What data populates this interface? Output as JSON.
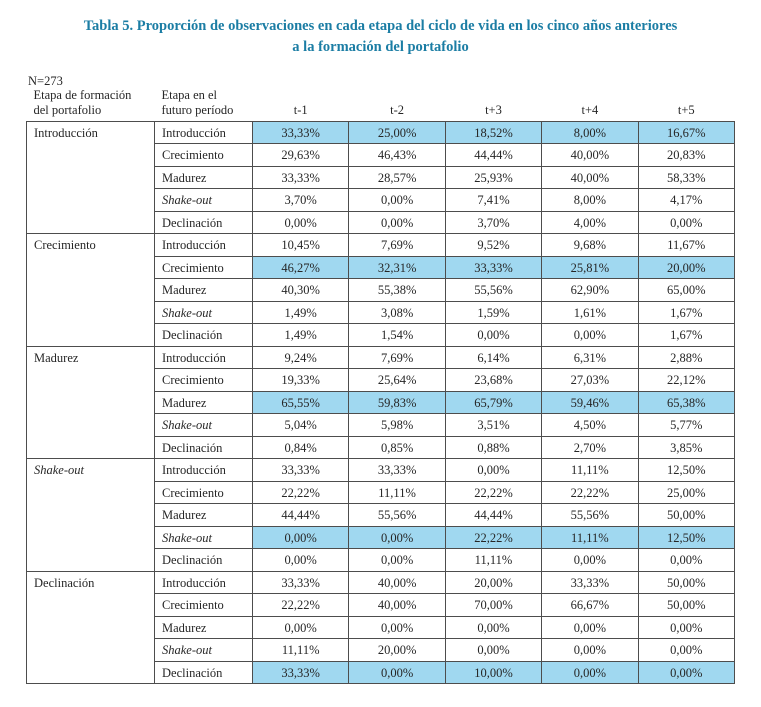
{
  "title": "Tabla 5. Proporción de observaciones en cada etapa del ciclo de vida en los cinco años anteriores\na la formación del portafolio",
  "n_label": "N=273",
  "colors": {
    "title_teal": "#1b7da4",
    "highlight_blue": "#a0d8f0",
    "border_gray": "#4d4d4d"
  },
  "table": {
    "col1_header": "Etapa de formación\ndel portafolio",
    "col2_header": "Etapa en el\nfuturo período",
    "period_headers": [
      "t-1",
      "t-2",
      "t+3",
      "t+4",
      "t+5"
    ],
    "groups": [
      {
        "label": "Introducción",
        "italic": false,
        "rows": [
          {
            "label": "Introducción",
            "italic": false,
            "highlight": true,
            "values": [
              "33,33%",
              "25,00%",
              "18,52%",
              "8,00%",
              "16,67%"
            ]
          },
          {
            "label": "Crecimiento",
            "italic": false,
            "highlight": false,
            "values": [
              "29,63%",
              "46,43%",
              "44,44%",
              "40,00%",
              "20,83%"
            ]
          },
          {
            "label": "Madurez",
            "italic": false,
            "highlight": false,
            "values": [
              "33,33%",
              "28,57%",
              "25,93%",
              "40,00%",
              "58,33%"
            ]
          },
          {
            "label": "Shake-out",
            "italic": true,
            "highlight": false,
            "values": [
              "3,70%",
              "0,00%",
              "7,41%",
              "8,00%",
              "4,17%"
            ]
          },
          {
            "label": "Declinación",
            "italic": false,
            "highlight": false,
            "values": [
              "0,00%",
              "0,00%",
              "3,70%",
              "4,00%",
              "0,00%"
            ]
          }
        ]
      },
      {
        "label": "Crecimiento",
        "italic": false,
        "rows": [
          {
            "label": "Introducción",
            "italic": false,
            "highlight": false,
            "values": [
              "10,45%",
              "7,69%",
              "9,52%",
              "9,68%",
              "11,67%"
            ]
          },
          {
            "label": "Crecimiento",
            "italic": false,
            "highlight": true,
            "values": [
              "46,27%",
              "32,31%",
              "33,33%",
              "25,81%",
              "20,00%"
            ]
          },
          {
            "label": "Madurez",
            "italic": false,
            "highlight": false,
            "values": [
              "40,30%",
              "55,38%",
              "55,56%",
              "62,90%",
              "65,00%"
            ]
          },
          {
            "label": "Shake-out",
            "italic": true,
            "highlight": false,
            "values": [
              "1,49%",
              "3,08%",
              "1,59%",
              "1,61%",
              "1,67%"
            ]
          },
          {
            "label": "Declinación",
            "italic": false,
            "highlight": false,
            "values": [
              "1,49%",
              "1,54%",
              "0,00%",
              "0,00%",
              "1,67%"
            ]
          }
        ]
      },
      {
        "label": "Madurez",
        "italic": false,
        "rows": [
          {
            "label": "Introducción",
            "italic": false,
            "highlight": false,
            "values": [
              "9,24%",
              "7,69%",
              "6,14%",
              "6,31%",
              "2,88%"
            ]
          },
          {
            "label": "Crecimiento",
            "italic": false,
            "highlight": false,
            "values": [
              "19,33%",
              "25,64%",
              "23,68%",
              "27,03%",
              "22,12%"
            ]
          },
          {
            "label": "Madurez",
            "italic": false,
            "highlight": true,
            "values": [
              "65,55%",
              "59,83%",
              "65,79%",
              "59,46%",
              "65,38%"
            ]
          },
          {
            "label": "Shake-out",
            "italic": true,
            "highlight": false,
            "values": [
              "5,04%",
              "5,98%",
              "3,51%",
              "4,50%",
              "5,77%"
            ]
          },
          {
            "label": "Declinación",
            "italic": false,
            "highlight": false,
            "values": [
              "0,84%",
              "0,85%",
              "0,88%",
              "2,70%",
              "3,85%"
            ]
          }
        ]
      },
      {
        "label": "Shake-out",
        "italic": true,
        "rows": [
          {
            "label": "Introducción",
            "italic": false,
            "highlight": false,
            "values": [
              "33,33%",
              "33,33%",
              "0,00%",
              "11,11%",
              "12,50%"
            ]
          },
          {
            "label": "Crecimiento",
            "italic": false,
            "highlight": false,
            "values": [
              "22,22%",
              "11,11%",
              "22,22%",
              "22,22%",
              "25,00%"
            ]
          },
          {
            "label": "Madurez",
            "italic": false,
            "highlight": false,
            "values": [
              "44,44%",
              "55,56%",
              "44,44%",
              "55,56%",
              "50,00%"
            ]
          },
          {
            "label": "Shake-out",
            "italic": true,
            "highlight": true,
            "values": [
              "0,00%",
              "0,00%",
              "22,22%",
              "11,11%",
              "12,50%"
            ]
          },
          {
            "label": "Declinación",
            "italic": false,
            "highlight": false,
            "values": [
              "0,00%",
              "0,00%",
              "11,11%",
              "0,00%",
              "0,00%"
            ]
          }
        ]
      },
      {
        "label": "Declinación",
        "italic": false,
        "rows": [
          {
            "label": "Introducción",
            "italic": false,
            "highlight": false,
            "values": [
              "33,33%",
              "40,00%",
              "20,00%",
              "33,33%",
              "50,00%"
            ]
          },
          {
            "label": "Crecimiento",
            "italic": false,
            "highlight": false,
            "values": [
              "22,22%",
              "40,00%",
              "70,00%",
              "66,67%",
              "50,00%"
            ]
          },
          {
            "label": "Madurez",
            "italic": false,
            "highlight": false,
            "values": [
              "0,00%",
              "0,00%",
              "0,00%",
              "0,00%",
              "0,00%"
            ]
          },
          {
            "label": "Shake-out",
            "italic": true,
            "highlight": false,
            "values": [
              "11,11%",
              "20,00%",
              "0,00%",
              "0,00%",
              "0,00%"
            ]
          },
          {
            "label": "Declinación",
            "italic": false,
            "highlight": true,
            "values": [
              "33,33%",
              "0,00%",
              "10,00%",
              "0,00%",
              "0,00%"
            ]
          }
        ]
      }
    ]
  }
}
